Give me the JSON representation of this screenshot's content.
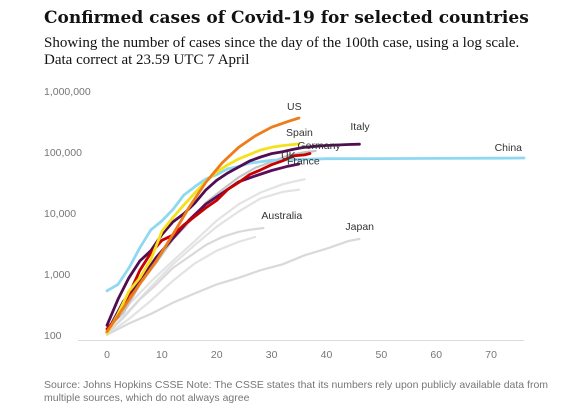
{
  "title": "Confirmed cases of Covid-19 for selected countries",
  "subtitle_line1": "Showing the number of cases since the day of the 100th case, using a log scale.",
  "subtitle_line2": "Data correct at 23.59 UTC 7 April",
  "source": "Source: Johns Hopkins CSSE Note: The CSSE states that its numbers rely upon publicly available data from multiple sources, which do not always agree",
  "colors": {
    "US": "#ed7d19",
    "Spain": "#f5e11b",
    "Italy": "#4f0e4f",
    "Germany": "#c4c4c4",
    "France": "#c70000",
    "UK": "#5b0f5b",
    "China": "#8fd8f2",
    "Australia": "#d9d9d9",
    "Japan": "#d9d9d9",
    "other": "#e3e3e3",
    "axis": "#dcdcdc",
    "tick": "#767676"
  },
  "chart_data": {
    "type": "line",
    "xlabel": "",
    "ylabel": "",
    "xlim": [
      0,
      76
    ],
    "ylim": [
      100,
      1000000
    ],
    "y_scale": "log",
    "x_ticks": [
      0,
      10,
      20,
      30,
      40,
      50,
      60,
      70
    ],
    "y_ticks": [
      100,
      1000,
      10000,
      100000,
      1000000
    ],
    "y_tick_labels": [
      "100",
      "1,000",
      "10,000",
      "100,000",
      "1,000,000"
    ],
    "grid": false,
    "series": [
      {
        "name": "China",
        "x": [
          0,
          2,
          4,
          6,
          8,
          10,
          12,
          14,
          16,
          18,
          20,
          22,
          24,
          26,
          30,
          40,
          50,
          60,
          70,
          76
        ],
        "y": [
          550,
          700,
          1300,
          2800,
          5500,
          7700,
          11800,
          20400,
          28000,
          37500,
          44000,
          55000,
          60000,
          68000,
          76000,
          80700,
          81000,
          81500,
          82300,
          82700
        ]
      },
      {
        "name": "US",
        "x": [
          0,
          3,
          6,
          9,
          12,
          15,
          18,
          21,
          24,
          27,
          30,
          33,
          35
        ],
        "y": [
          118,
          290,
          720,
          1700,
          4600,
          13000,
          33000,
          69000,
          124000,
          190000,
          265000,
          330000,
          375000
        ]
      },
      {
        "name": "Spain",
        "x": [
          0,
          2,
          4,
          6,
          8,
          10,
          12,
          14,
          16,
          18,
          20,
          22,
          24,
          26,
          28,
          30,
          32,
          35
        ],
        "y": [
          110,
          230,
          540,
          900,
          1800,
          5200,
          8700,
          14000,
          22000,
          34000,
          49000,
          64000,
          80000,
          95000,
          112000,
          124000,
          132000,
          141000
        ]
      },
      {
        "name": "Italy",
        "x": [
          0,
          2,
          4,
          6,
          8,
          10,
          12,
          14,
          16,
          18,
          20,
          22,
          24,
          26,
          28,
          30,
          32,
          34,
          36,
          38,
          40,
          42,
          44,
          46
        ],
        "y": [
          150,
          400,
          900,
          1700,
          2500,
          4600,
          7400,
          10100,
          15100,
          24700,
          35700,
          47000,
          59000,
          74000,
          86000,
          97700,
          105000,
          115000,
          124000,
          128900,
          132500,
          135500,
          138000,
          139500
        ]
      },
      {
        "name": "Germany",
        "x": [
          0,
          3,
          6,
          9,
          12,
          15,
          18,
          21,
          24,
          27,
          30,
          33,
          36,
          38
        ],
        "y": [
          130,
          240,
          700,
          1600,
          3800,
          7400,
          15300,
          24900,
          40000,
          57000,
          71800,
          91000,
          103000,
          108000
        ]
      },
      {
        "name": "UK",
        "x": [
          0,
          3,
          6,
          9,
          12,
          15,
          18,
          21,
          24,
          27,
          30,
          33,
          35
        ],
        "y": [
          115,
          370,
          800,
          1960,
          3980,
          8000,
          14500,
          22000,
          33700,
          42000,
          51600,
          60700,
          66000
        ]
      },
      {
        "name": "France",
        "x": [
          0,
          2,
          4,
          6,
          8,
          10,
          12,
          14,
          16,
          18,
          20,
          22,
          24,
          26,
          28,
          30,
          32,
          34,
          36,
          37
        ],
        "y": [
          130,
          210,
          480,
          1200,
          2300,
          3700,
          4500,
          6600,
          9100,
          12600,
          16700,
          25200,
          32900,
          44500,
          52800,
          64300,
          74400,
          89900,
          93000,
          98000
        ]
      },
      {
        "name": "Australia",
        "x": [
          0,
          3,
          6,
          9,
          12,
          15,
          18,
          21,
          24,
          26,
          28,
          28.5
        ],
        "y": [
          110,
          200,
          400,
          700,
          1300,
          2000,
          3100,
          4200,
          5100,
          5500,
          5800,
          5900
        ]
      },
      {
        "name": "Japan",
        "x": [
          0,
          4,
          8,
          12,
          16,
          20,
          24,
          28,
          32,
          36,
          40,
          44,
          46
        ],
        "y": [
          105,
          160,
          230,
          350,
          500,
          700,
          900,
          1200,
          1500,
          2100,
          2700,
          3600,
          3900
        ]
      },
      {
        "name": "",
        "x": [
          0,
          4,
          8,
          12,
          16,
          20,
          24,
          28,
          32,
          34,
          36
        ],
        "y": [
          120,
          330,
          780,
          1700,
          3600,
          7800,
          14500,
          22500,
          30700,
          34000,
          37000
        ]
      },
      {
        "name": "",
        "x": [
          0,
          4,
          8,
          12,
          16,
          20,
          24,
          28,
          32,
          35
        ],
        "y": [
          110,
          260,
          640,
          1500,
          3100,
          6200,
          11000,
          18000,
          23000,
          25000
        ]
      },
      {
        "name": "",
        "x": [
          0,
          4,
          8,
          12,
          16,
          20,
          24,
          27
        ],
        "y": [
          105,
          190,
          380,
          800,
          1550,
          2500,
          3500,
          4200
        ]
      }
    ],
    "labels": [
      {
        "text": "US",
        "series": "US"
      },
      {
        "text": "Spain",
        "series": "Spain"
      },
      {
        "text": "Italy",
        "series": "Italy"
      },
      {
        "text": "Germany",
        "series": "Germany"
      },
      {
        "text": "UK",
        "series": "UK"
      },
      {
        "text": "France",
        "series": "France"
      },
      {
        "text": "China",
        "series": "China"
      },
      {
        "text": "Australia",
        "series": "Australia"
      },
      {
        "text": "Japan",
        "series": "Japan"
      }
    ]
  }
}
